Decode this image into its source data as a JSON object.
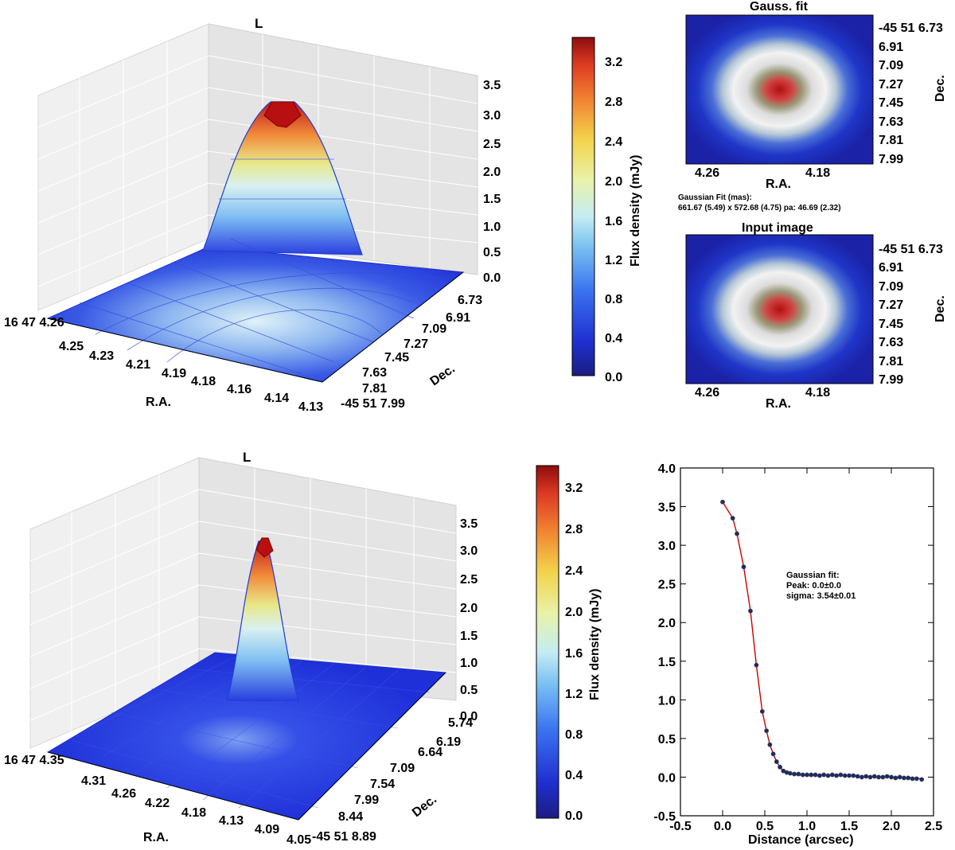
{
  "panels": {
    "top_left": {
      "title": "L",
      "z_ticks": [
        "3.5",
        "3.0",
        "2.5",
        "2.0",
        "1.5",
        "1.0",
        "0.5",
        "0.0"
      ],
      "ra_ticks": [
        "16 47 4.26",
        "4.25",
        "4.23",
        "4.21",
        "4.19",
        "4.18",
        "4.16",
        "4.14",
        "4.13"
      ],
      "dec_ticks": [
        "6.73",
        "6.91",
        "7.09",
        "7.27",
        "7.45",
        "7.63",
        "7.81",
        "-45 51 7.99"
      ],
      "xlabel": "R.A.",
      "ylabel": "Dec."
    },
    "colorbar_top": {
      "label": "Flux density (mJy)",
      "ticks": [
        "3.2",
        "2.8",
        "2.4",
        "2.0",
        "1.6",
        "1.2",
        "0.8",
        "0.4",
        "0.0"
      ]
    },
    "gauss_fit": {
      "title": "Gauss. fit",
      "dec_ticks": [
        "-45 51 6.73",
        "6.91",
        "7.09",
        "7.27",
        "7.45",
        "7.63",
        "7.81",
        "7.99"
      ],
      "ra_ticks": [
        "4.26",
        "4.18"
      ],
      "xlabel": "R.A.",
      "ylabel": "Dec.",
      "note_line1": "Gaussian Fit (mas):",
      "note_line2": "661.67 (5.49) x 572.68 (4.75) pa: 46.69 (2.32)"
    },
    "input_image": {
      "title": "Input image",
      "dec_ticks": [
        "-45 51 6.73",
        "6.91",
        "7.09",
        "7.27",
        "7.45",
        "7.63",
        "7.81",
        "7.99"
      ],
      "ra_ticks": [
        "4.26",
        "4.18"
      ],
      "xlabel": "R.A.",
      "ylabel": "Dec."
    },
    "bottom_left": {
      "title": "L",
      "z_ticks": [
        "3.5",
        "3.0",
        "2.5",
        "2.0",
        "1.5",
        "1.0",
        "0.5",
        "0.0"
      ],
      "ra_ticks": [
        "16 47 4.35",
        "4.31",
        "4.26",
        "4.22",
        "4.18",
        "4.13",
        "4.09",
        "4.05"
      ],
      "dec_ticks": [
        "5.74",
        "6.19",
        "6.64",
        "7.09",
        "7.54",
        "7.99",
        "8.44",
        "-45 51 8.89"
      ],
      "xlabel": "R.A.",
      "ylabel": "Dec."
    },
    "colorbar_bottom": {
      "label": "Flux density (mJy)",
      "ticks": [
        "3.2",
        "2.8",
        "2.4",
        "2.0",
        "1.6",
        "1.2",
        "0.8",
        "0.4",
        "0.0"
      ]
    },
    "profile": {
      "note_line1": "Gaussian fit:",
      "note_line2": "Peak: 0.0±0.0",
      "note_line3": "sigma: 3.54±0.01"
    }
  },
  "colors": {
    "fit_line": "#cc0000",
    "points": "#1a2a6c",
    "peak": "#b30000",
    "low": "#1f2fd0"
  },
  "chart_data": [
    {
      "type": "surface",
      "title": "L",
      "xlabel": "R.A.",
      "ylabel": "Dec.",
      "zlabel": "Flux density (mJy)",
      "zlim": [
        0,
        3.5
      ],
      "peak": 3.3,
      "colorbar_range": [
        0.0,
        3.4
      ]
    },
    {
      "type": "heatmap",
      "title": "Gauss. fit",
      "xlabel": "R.A.",
      "ylabel": "Dec.",
      "fit_major_mas": 661.67,
      "fit_major_err": 5.49,
      "fit_minor_mas": 572.68,
      "fit_minor_err": 4.75,
      "pa": 46.69,
      "pa_err": 2.32
    },
    {
      "type": "heatmap",
      "title": "Input image",
      "xlabel": "R.A.",
      "ylabel": "Dec."
    },
    {
      "type": "surface",
      "title": "L",
      "xlabel": "R.A.",
      "ylabel": "Dec.",
      "zlabel": "Flux density (mJy)",
      "zlim": [
        0,
        3.5
      ],
      "peak": 3.25
    },
    {
      "type": "scatter",
      "title": "",
      "xlabel": "Distance (arcsec)",
      "ylabel": "",
      "xlim": [
        -0.5,
        2.5
      ],
      "ylim": [
        -0.5,
        4.0
      ],
      "x_ticks": [
        -0.5,
        0.0,
        0.5,
        1.0,
        1.5,
        2.0,
        2.5
      ],
      "y_ticks": [
        -0.5,
        0.0,
        0.5,
        1.0,
        1.5,
        2.0,
        2.5,
        3.0,
        3.5,
        4.0
      ],
      "x_tick_labels": [
        "-0.5",
        "0.0",
        "0.5",
        "1.0",
        "1.5",
        "2.0",
        "2.5"
      ],
      "y_tick_labels": [
        "-0.5",
        "0.0",
        "0.5",
        "1.0",
        "1.5",
        "2.0",
        "2.5",
        "3.0",
        "3.5",
        "4.0"
      ],
      "series": [
        {
          "name": "data",
          "x": [
            0.0,
            0.12,
            0.17,
            0.25,
            0.33,
            0.4,
            0.47,
            0.52,
            0.56,
            0.6,
            0.64,
            0.68,
            0.72,
            0.76,
            0.8,
            0.85,
            0.9,
            0.95,
            1.0,
            1.05,
            1.1,
            1.15,
            1.2,
            1.25,
            1.3,
            1.35,
            1.4,
            1.45,
            1.5,
            1.55,
            1.6,
            1.65,
            1.7,
            1.75,
            1.8,
            1.85,
            1.9,
            1.95,
            2.0,
            2.05,
            2.1,
            2.15,
            2.2,
            2.25,
            2.3,
            2.36
          ],
          "values": [
            3.56,
            3.35,
            3.15,
            2.72,
            2.15,
            1.45,
            0.85,
            0.6,
            0.42,
            0.3,
            0.2,
            0.13,
            0.08,
            0.06,
            0.05,
            0.04,
            0.04,
            0.03,
            0.03,
            0.03,
            0.03,
            0.02,
            0.03,
            0.02,
            0.03,
            0.02,
            0.03,
            0.02,
            0.02,
            0.02,
            0.01,
            0.0,
            0.01,
            0.0,
            0.01,
            0.0,
            0.0,
            0.01,
            0.0,
            -0.01,
            0.0,
            -0.01,
            -0.01,
            -0.02,
            -0.02,
            -0.03
          ]
        },
        {
          "name": "Gaussian fit",
          "x": [
            0.0,
            0.12,
            0.17,
            0.25,
            0.33,
            0.4,
            0.47,
            0.52,
            0.56,
            0.6,
            0.64,
            0.68,
            0.72,
            0.76,
            0.8,
            0.85,
            0.9,
            1.0,
            1.2,
            1.4,
            1.6,
            1.8,
            2.0,
            2.2,
            2.36
          ],
          "values": [
            3.56,
            3.35,
            3.15,
            2.72,
            2.15,
            1.45,
            0.85,
            0.6,
            0.42,
            0.3,
            0.2,
            0.13,
            0.08,
            0.05,
            0.04,
            0.03,
            0.03,
            0.02,
            0.02,
            0.02,
            0.01,
            0.0,
            0.0,
            -0.01,
            -0.02
          ]
        }
      ]
    }
  ]
}
